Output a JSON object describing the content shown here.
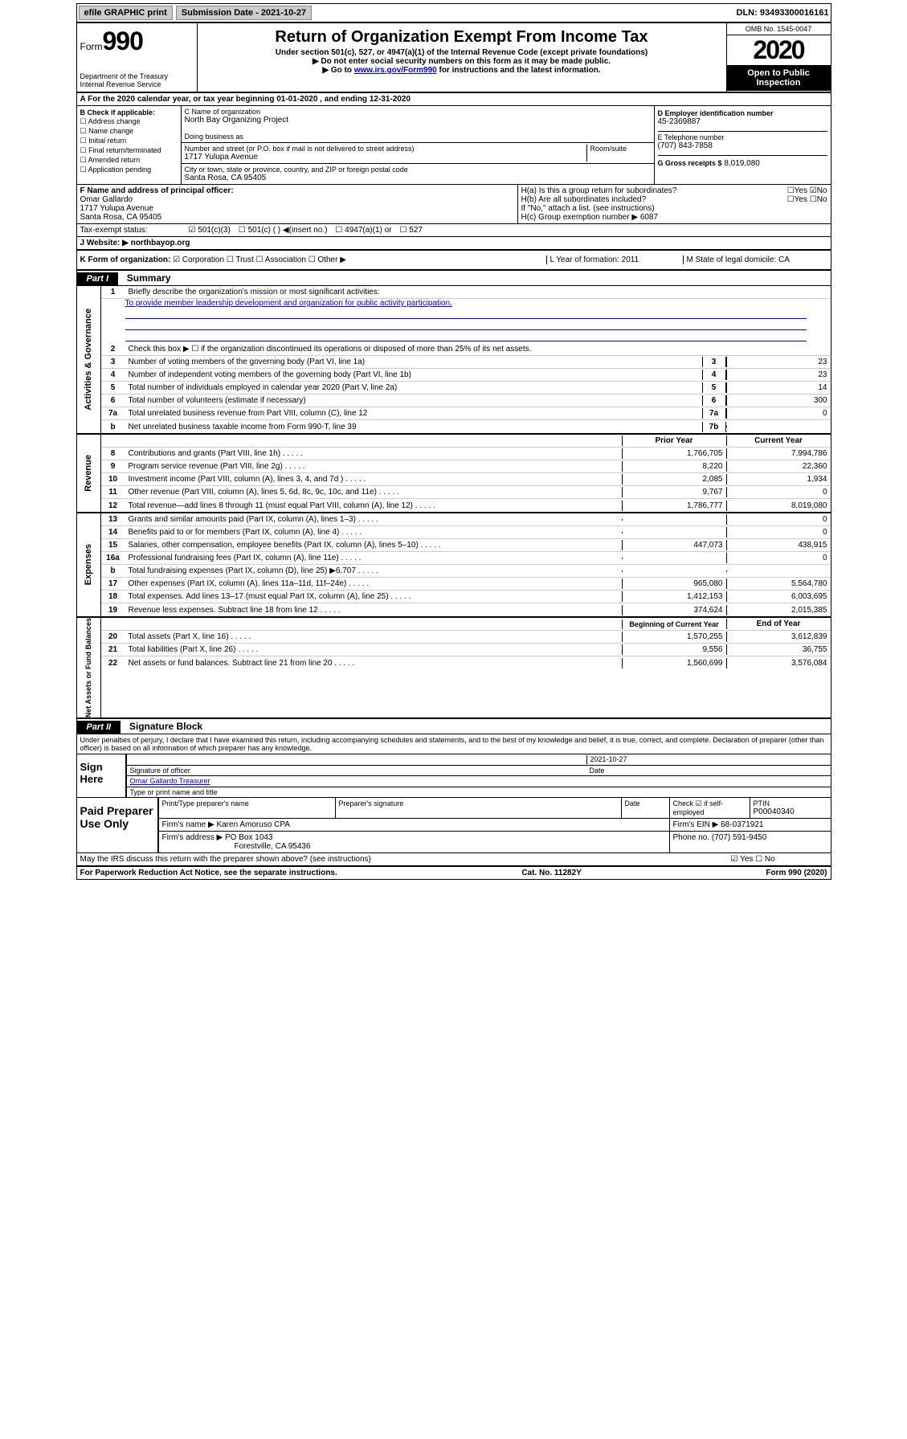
{
  "top": {
    "efile": "efile GRAPHIC print",
    "subdate_label": "Submission Date - 2021-10-27",
    "dln": "DLN: 93493300016161"
  },
  "header": {
    "form_label": "Form",
    "form_num": "990",
    "dept": "Department of the Treasury Internal Revenue Service",
    "title": "Return of Organization Exempt From Income Tax",
    "subtitle": "Under section 501(c), 527, or 4947(a)(1) of the Internal Revenue Code (except private foundations)",
    "note1": "▶ Do not enter social security numbers on this form as it may be made public.",
    "note2_pre": "▶ Go to ",
    "note2_link": "www.irs.gov/Form990",
    "note2_post": " for instructions and the latest information.",
    "omb": "OMB No. 1545-0047",
    "year": "2020",
    "public": "Open to Public Inspection"
  },
  "rowA": "A For the 2020 calendar year, or tax year beginning 01-01-2020    , and ending 12-31-2020",
  "boxB": {
    "label": "B Check if applicable:",
    "opts": [
      "☐ Address change",
      "☐ Name change",
      "☐ Initial return",
      "☐ Final return/terminated",
      "☐ Amended return",
      "☐ Application pending"
    ]
  },
  "boxC": {
    "name_label": "C Name of organization",
    "name": "North Bay Organizing Project",
    "dba_label": "Doing business as",
    "addr_label": "Number and street (or P.O. box if mail is not delivered to street address)",
    "room_label": "Room/suite",
    "addr": "1717 Yulupa Avenue",
    "city_label": "City or town, state or province, country, and ZIP or foreign postal code",
    "city": "Santa Rosa, CA  95405"
  },
  "boxD": {
    "label": "D Employer identification number",
    "val": "45-2369887"
  },
  "boxE": {
    "label": "E Telephone number",
    "val": "(707) 843-7858"
  },
  "boxG": {
    "label": "G Gross receipts $",
    "val": "8,019,080"
  },
  "boxF": {
    "label": "F  Name and address of principal officer:",
    "name": "Omar Gallardo",
    "addr": "1717 Yulupa Avenue",
    "city": "Santa Rosa, CA  95405"
  },
  "boxH": {
    "a": "H(a)  Is this a group return for subordinates?",
    "a_yes": "☐Yes",
    "a_no": "☑No",
    "b": "H(b)  Are all subordinates included?",
    "b_yes": "☐Yes",
    "b_no": "☐No",
    "b_note": "If \"No,\" attach a list. (see instructions)",
    "c": "H(c)  Group exemption number ▶",
    "c_val": "6087"
  },
  "tax": {
    "label": "Tax-exempt status:",
    "o1": "501(c)(3)",
    "o2": "501(c) (  ) ◀(insert no.)",
    "o3": "4947(a)(1) or",
    "o4": "527"
  },
  "website": {
    "label": "J  Website: ▶",
    "val": "northbayop.org"
  },
  "rowK": {
    "label": "K Form of organization:",
    "opts": "☑ Corporation  ☐ Trust  ☐ Association  ☐ Other ▶",
    "L": "L Year of formation: 2011",
    "M": "M State of legal domicile: CA"
  },
  "part1": {
    "label": "Part I",
    "title": "Summary"
  },
  "gov": {
    "label": "Activities & Governance",
    "l1": "Briefly describe the organization's mission or most significant activities:",
    "mission": "To provide member leadership development and organization for public activity participation.",
    "l2": "Check this box ▶ ☐  if the organization discontinued its operations or disposed of more than 25% of its net assets.",
    "l3": "Number of voting members of the governing body (Part VI, line 1a)",
    "v3": "23",
    "l4": "Number of independent voting members of the governing body (Part VI, line 1b)",
    "v4": "23",
    "l5": "Total number of individuals employed in calendar year 2020 (Part V, line 2a)",
    "v5": "14",
    "l6": "Total number of volunteers (estimate if necessary)",
    "v6": "300",
    "l7a": "Total unrelated business revenue from Part VIII, column (C), line 12",
    "v7a": "0",
    "l7b": "Net unrelated business taxable income from Form 990-T, line 39",
    "v7b": ""
  },
  "rev": {
    "label": "Revenue",
    "hdr_prior": "Prior Year",
    "hdr_curr": "Current Year",
    "rows": [
      {
        "n": "8",
        "t": "Contributions and grants (Part VIII, line 1h)",
        "p": "1,766,705",
        "c": "7,994,786"
      },
      {
        "n": "9",
        "t": "Program service revenue (Part VIII, line 2g)",
        "p": "8,220",
        "c": "22,360"
      },
      {
        "n": "10",
        "t": "Investment income (Part VIII, column (A), lines 3, 4, and 7d )",
        "p": "2,085",
        "c": "1,934"
      },
      {
        "n": "11",
        "t": "Other revenue (Part VIII, column (A), lines 5, 6d, 8c, 9c, 10c, and 11e)",
        "p": "9,767",
        "c": "0"
      },
      {
        "n": "12",
        "t": "Total revenue—add lines 8 through 11 (must equal Part VIII, column (A), line 12)",
        "p": "1,786,777",
        "c": "8,019,080"
      }
    ]
  },
  "exp": {
    "label": "Expenses",
    "rows": [
      {
        "n": "13",
        "t": "Grants and similar amounts paid (Part IX, column (A), lines 1–3)",
        "p": "",
        "c": "0"
      },
      {
        "n": "14",
        "t": "Benefits paid to or for members (Part IX, column (A), line 4)",
        "p": "",
        "c": "0"
      },
      {
        "n": "15",
        "t": "Salaries, other compensation, employee benefits (Part IX, column (A), lines 5–10)",
        "p": "447,073",
        "c": "438,915"
      },
      {
        "n": "16a",
        "t": "Professional fundraising fees (Part IX, column (A), line 11e)",
        "p": "",
        "c": "0"
      },
      {
        "n": "b",
        "t": "Total fundraising expenses (Part IX, column (D), line 25) ▶6,707",
        "p": "",
        "c": ""
      },
      {
        "n": "17",
        "t": "Other expenses (Part IX, column (A), lines 11a–11d, 11f–24e)",
        "p": "965,080",
        "c": "5,564,780"
      },
      {
        "n": "18",
        "t": "Total expenses. Add lines 13–17 (must equal Part IX, column (A), line 25)",
        "p": "1,412,153",
        "c": "6,003,695"
      },
      {
        "n": "19",
        "t": "Revenue less expenses. Subtract line 18 from line 12",
        "p": "374,624",
        "c": "2,015,385"
      }
    ]
  },
  "net": {
    "label": "Net Assets or Fund Balances",
    "hdr_beg": "Beginning of Current Year",
    "hdr_end": "End of Year",
    "rows": [
      {
        "n": "20",
        "t": "Total assets (Part X, line 16)",
        "p": "1,570,255",
        "c": "3,612,839"
      },
      {
        "n": "21",
        "t": "Total liabilities (Part X, line 26)",
        "p": "9,556",
        "c": "36,755"
      },
      {
        "n": "22",
        "t": "Net assets or fund balances. Subtract line 21 from line 20",
        "p": "1,560,699",
        "c": "3,576,084"
      }
    ]
  },
  "part2": {
    "label": "Part II",
    "title": "Signature Block"
  },
  "perjury": "Under penalties of perjury, I declare that I have examined this return, including accompanying schedules and statements, and to the best of my knowledge and belief, it is true, correct, and complete. Declaration of preparer (other than officer) is based on all information of which preparer has any knowledge.",
  "sign": {
    "here": "Sign Here",
    "sig_officer": "Signature of officer",
    "date": "2021-10-27",
    "date_label": "Date",
    "name": "Omar Gallardo  Treasurer",
    "name_label": "Type or print name and title"
  },
  "prep": {
    "label": "Paid Preparer Use Only",
    "col1": "Print/Type preparer's name",
    "col2": "Preparer's signature",
    "col3": "Date",
    "col4_label": "Check ☑ if self-employed",
    "col5_label": "PTIN",
    "col5": "P00040340",
    "firm_name_label": "Firm's name    ▶",
    "firm_name": "Karen Amoruso CPA",
    "firm_ein_label": "Firm's EIN ▶",
    "firm_ein": "68-0371921",
    "firm_addr_label": "Firm's address ▶",
    "firm_addr": "PO Box 1043",
    "firm_city": "Forestville, CA  95436",
    "phone_label": "Phone no.",
    "phone": "(707) 591-9450"
  },
  "discuss": {
    "text": "May the IRS discuss this return with the preparer shown above? (see instructions)",
    "yes": "☑ Yes",
    "no": "☐ No"
  },
  "footer": {
    "left": "For Paperwork Reduction Act Notice, see the separate instructions.",
    "mid": "Cat. No. 11282Y",
    "right": "Form 990 (2020)"
  }
}
